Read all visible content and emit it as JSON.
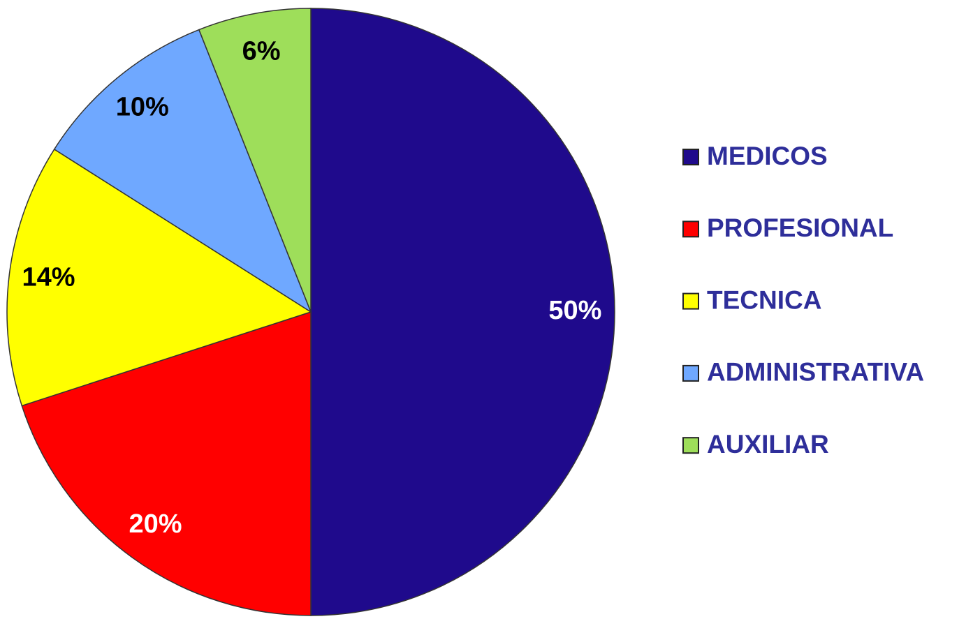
{
  "chart_data": {
    "type": "pie",
    "categories": [
      "MEDICOS",
      "PROFESIONAL",
      "TECNICA",
      "ADMINISTRATIVA",
      "AUXILIAR"
    ],
    "values": [
      50,
      20,
      14,
      10,
      6
    ],
    "value_labels": [
      "50%",
      "20%",
      "14%",
      "10%",
      "6%"
    ],
    "colors": [
      "#1f0a8c",
      "#ff0000",
      "#ffff00",
      "#6fa8ff",
      "#9ede5a"
    ],
    "legend": "right"
  }
}
